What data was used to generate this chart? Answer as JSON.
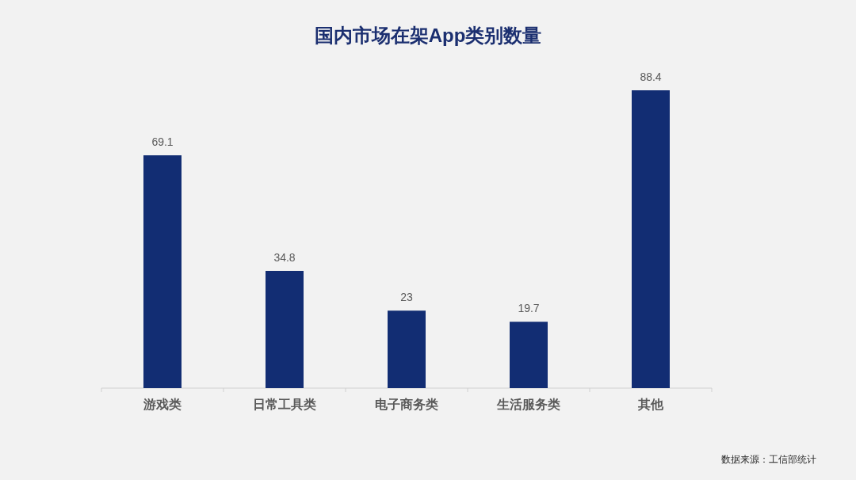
{
  "chart_data": {
    "type": "bar",
    "title": "国内市场在架App类别数量",
    "categories": [
      "游戏类",
      "日常工具类",
      "电子商务类",
      "生活服务类",
      "其他"
    ],
    "values": [
      69.1,
      34.8,
      23,
      19.7,
      88.4
    ],
    "color": "#122d73",
    "data_labels": true,
    "annotations": [
      "数据来源：工信部统计"
    ]
  }
}
